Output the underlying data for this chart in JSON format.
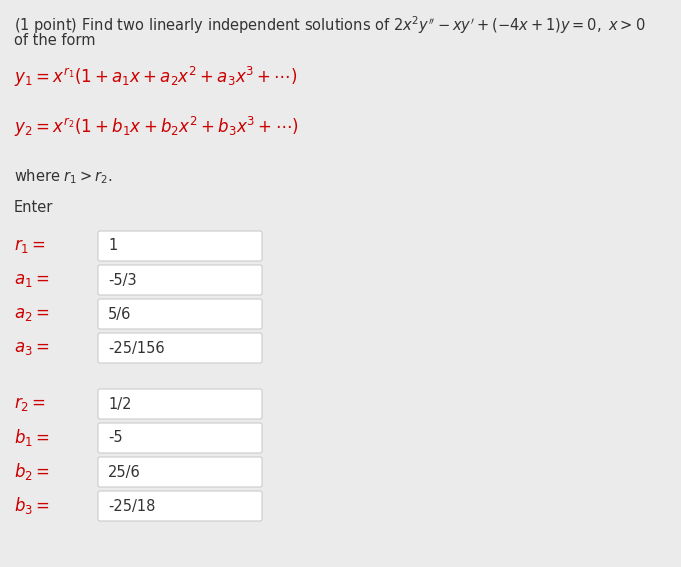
{
  "bg_color": "#ebebeb",
  "text_color": "#333333",
  "label_color": "#cc0000",
  "box_color": "#ffffff",
  "box_edge_color": "#cccccc",
  "title_line1": "(1 point) Find two linearly independent solutions of $2x^2y'' - xy' + (-4x + 1)y = 0,\\ x > 0$",
  "title_line2": "of the form",
  "y1_formula": "$y_1 = x^{r_1}(1 + a_1 x + a_2 x^2 + a_3 x^3 + \\cdots)$",
  "y2_formula": "$y_2 = x^{r_2}(1 + b_1 x + b_2 x^2 + b_3 x^3 + \\cdots)$",
  "where_text": "where $r_1 > r_2$.",
  "enter_text": "Enter",
  "fields1_labels": [
    "$r_1 =$",
    "$a_1 =$",
    "$a_2 =$",
    "$a_3 =$"
  ],
  "fields1_values": [
    "1",
    "-5/3",
    "5/6",
    "-25/156"
  ],
  "fields2_labels": [
    "$r_2 =$",
    "$b_1 =$",
    "$b_2 =$",
    "$b_3 =$"
  ],
  "fields2_values": [
    "1/2",
    "-5",
    "25/6",
    "-25/18"
  ],
  "font_size_title": 10.5,
  "font_size_formula": 12,
  "font_size_label": 12,
  "font_size_value": 10.5
}
